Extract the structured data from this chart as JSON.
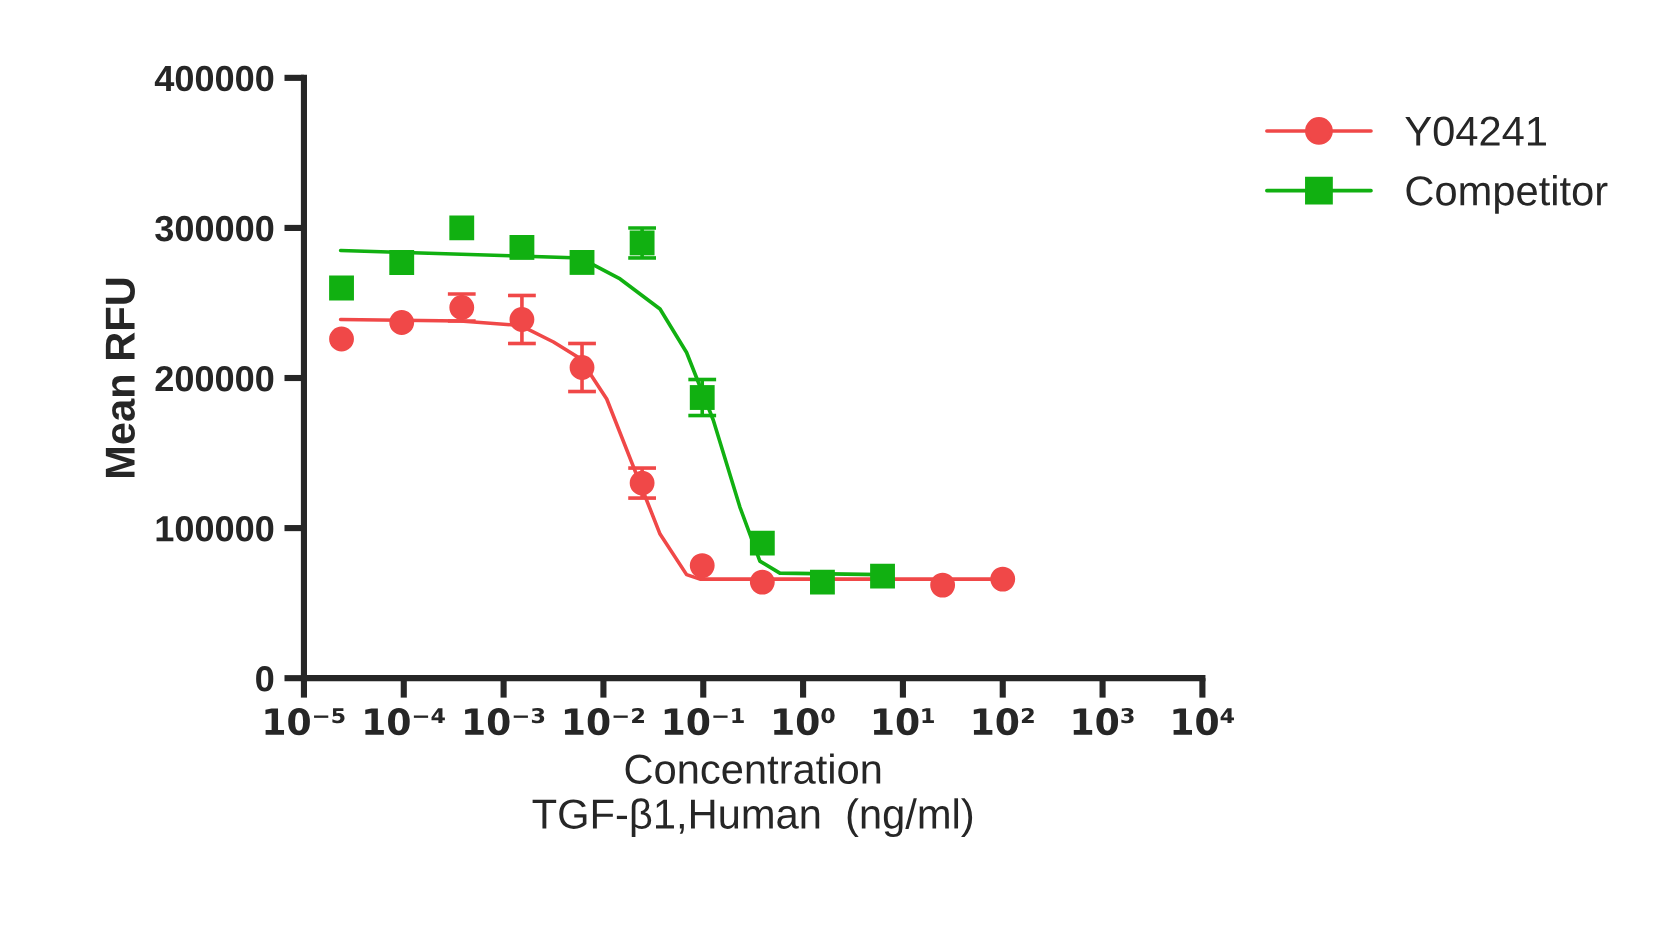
{
  "chart_data": {
    "type": "scatter",
    "xlabel": "Concentration\nTGF-β1,Human  (ng/ml)",
    "ylabel": "Mean RFU",
    "log": "x",
    "grid": false,
    "legend": "top right",
    "xlim": [
      1e-05,
      10000
    ],
    "xticks": [
      {
        "value": 1e-05,
        "label": "10⁻⁵"
      },
      {
        "value": 0.0001,
        "label": "10⁻⁴"
      },
      {
        "value": 0.001,
        "label": "10⁻³"
      },
      {
        "value": 0.01,
        "label": "10⁻²"
      },
      {
        "value": 0.1,
        "label": "10⁻¹"
      },
      {
        "value": 1,
        "label": "10⁰"
      },
      {
        "value": 10,
        "label": "10¹"
      },
      {
        "value": 100,
        "label": "10²"
      },
      {
        "value": 1000,
        "label": "10³"
      },
      {
        "value": 10000,
        "label": "10⁴"
      }
    ],
    "ylim": [
      0,
      400000
    ],
    "yticks": [
      0,
      100000,
      200000,
      300000,
      400000
    ],
    "series": [
      {
        "name": "Y04241",
        "color": "#f04848",
        "marker": "circle",
        "x": [
          2.38e-05,
          9.54e-05,
          0.000381,
          0.001526,
          0.006104,
          0.02441,
          0.09766,
          0.3906,
          1.5625,
          6.25,
          25,
          100
        ],
        "values": [
          226000,
          237000,
          247000,
          239000,
          207000,
          130000,
          75000,
          64000,
          null,
          null,
          62000,
          66000
        ],
        "errors": [
          null,
          null,
          9000,
          16000,
          16000,
          10000,
          null,
          null,
          null,
          null,
          null,
          null
        ]
      },
      {
        "name": "Competitor",
        "color": "#11b011",
        "marker": "square",
        "x": [
          2.38e-05,
          9.54e-05,
          0.000381,
          0.001526,
          0.006104,
          0.02441,
          0.09766,
          0.3906,
          1.5625,
          6.25
        ],
        "values": [
          260000,
          277000,
          300000,
          287000,
          277000,
          290000,
          187000,
          90000,
          64000,
          68000
        ],
        "errors": [
          null,
          null,
          null,
          null,
          null,
          10000,
          12000,
          null,
          null,
          null
        ]
      },
      {
        "type": "line",
        "color": "#f04848",
        "marker": "none",
        "x": [
          2.33e-05,
          0.000369,
          0.001469,
          0.003162,
          0.005848,
          0.01079,
          0.01995,
          0.0369,
          0.06808,
          0.09268,
          95.5
        ],
        "values": [
          239000,
          238000,
          235000,
          224000,
          213000,
          186000,
          141000,
          96000,
          69000,
          66000,
          66000
        ]
      },
      {
        "type": "line",
        "color": "#11b011",
        "marker": "none",
        "x": [
          2.33e-05,
          0.005848,
          0.01469,
          0.0369,
          0.06808,
          0.1259,
          0.2328,
          0.369,
          0.5848,
          5.848
        ],
        "values": [
          285000,
          280000,
          266000,
          246000,
          217000,
          172000,
          114000,
          78000,
          70000,
          69000
        ]
      }
    ]
  }
}
